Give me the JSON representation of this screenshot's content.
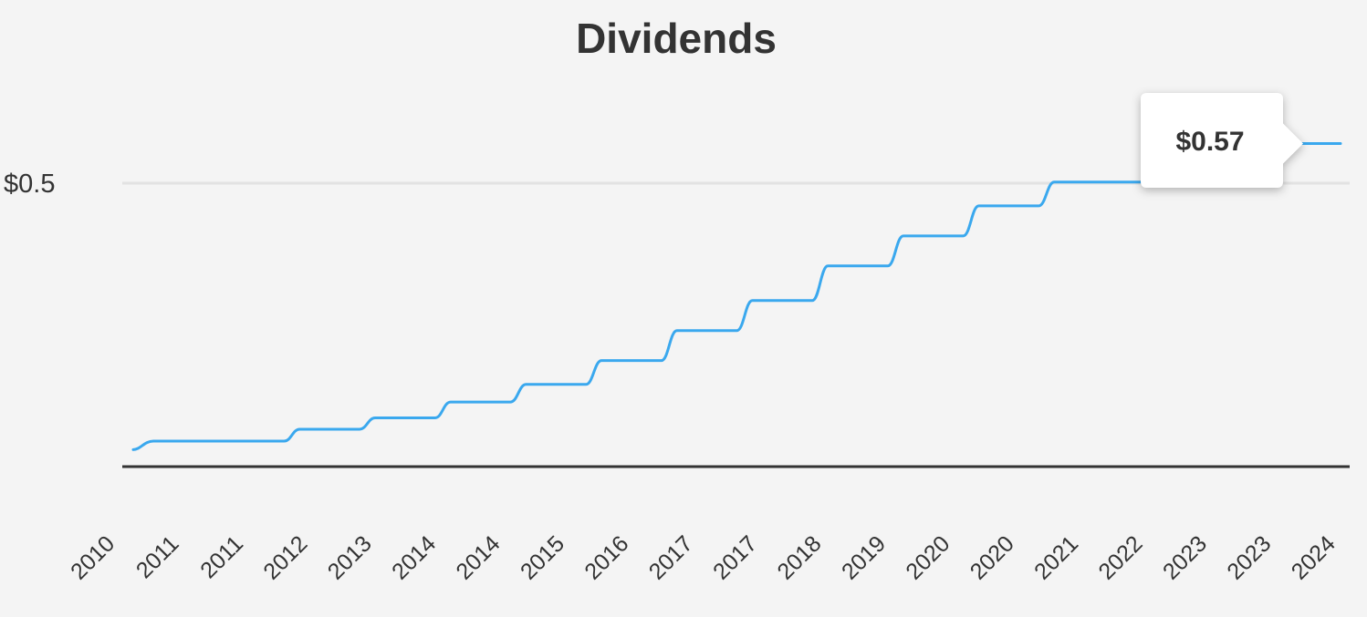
{
  "chart_data": {
    "type": "line",
    "title": "Dividends",
    "xlabel": "",
    "ylabel": "",
    "x_tick_labels": [
      "2010",
      "2011",
      "2011",
      "2012",
      "2013",
      "2014",
      "2014",
      "2015",
      "2016",
      "2017",
      "2017",
      "2018",
      "2019",
      "2020",
      "2020",
      "2021",
      "2022",
      "2023",
      "2023",
      "2024"
    ],
    "y_tick_labels": [
      "$0.5"
    ],
    "y_ticks": [
      0.5
    ],
    "ylim": [
      0,
      0.6
    ],
    "grid": true,
    "line_color": "#3aa8ee",
    "series": [
      {
        "values": [
          0.03,
          0.045,
          0.045,
          0.066,
          0.086,
          0.114,
          0.145,
          0.187,
          0.24,
          0.293,
          0.354,
          0.407,
          0.46,
          0.502,
          0.502,
          0.57,
          0.57
        ]
      }
    ],
    "tooltip": {
      "label": "$0.57",
      "value": 0.57
    }
  }
}
